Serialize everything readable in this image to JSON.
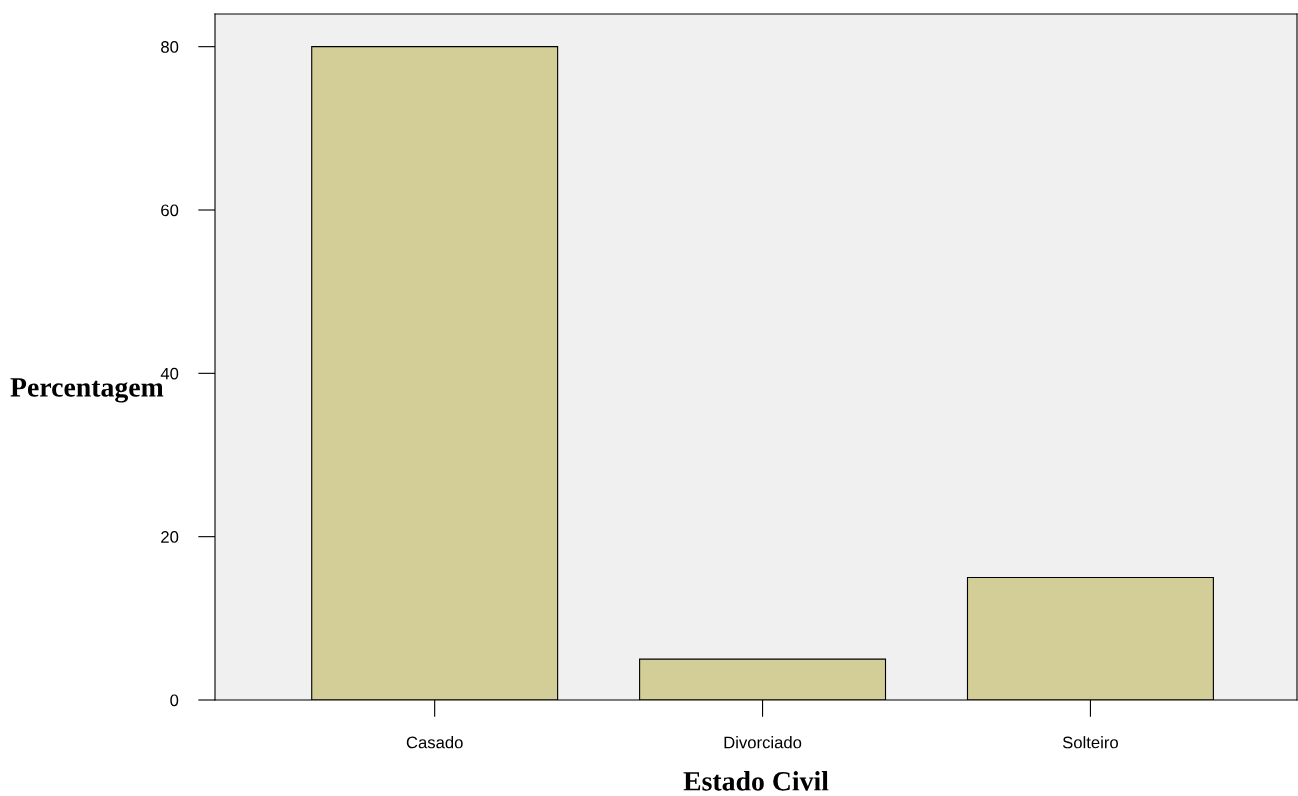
{
  "chart_data": {
    "type": "bar",
    "xlabel": "Estado Civil",
    "ylabel": "Percentagem",
    "categories": [
      "Casado",
      "Divorciado",
      "Solteiro"
    ],
    "values": [
      80,
      5,
      15
    ],
    "color": "#d3ce97",
    "ylim": [
      0,
      84
    ],
    "yticks": [
      0,
      20,
      40,
      60,
      80
    ],
    "grid": false,
    "legend": false
  }
}
